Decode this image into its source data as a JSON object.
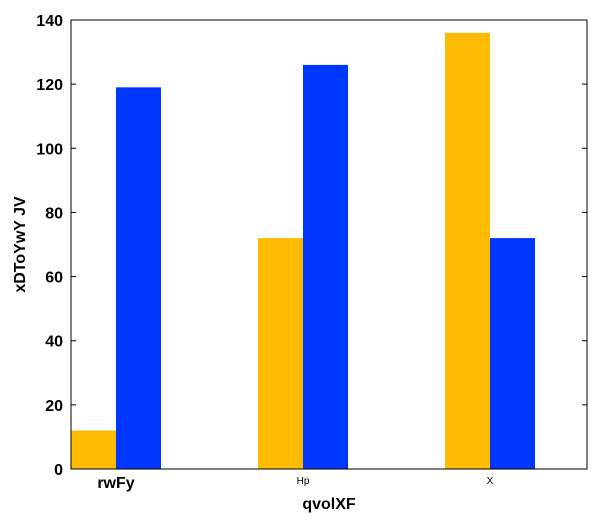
{
  "chart_data": {
    "type": "bar",
    "title": "",
    "xlabel": "qvolXF",
    "ylabel": "xDToYwY JV",
    "ylim": [
      0,
      140
    ],
    "yticks": [
      0,
      20,
      40,
      60,
      80,
      100,
      120,
      140
    ],
    "categories": [
      "rwFy",
      "Hp",
      "X"
    ],
    "series": [
      {
        "color": "#FFBB00",
        "values": [
          12,
          72,
          136
        ]
      },
      {
        "color": "#0037FF",
        "values": [
          119,
          126,
          72
        ]
      }
    ],
    "grid": false,
    "legend": "none"
  }
}
